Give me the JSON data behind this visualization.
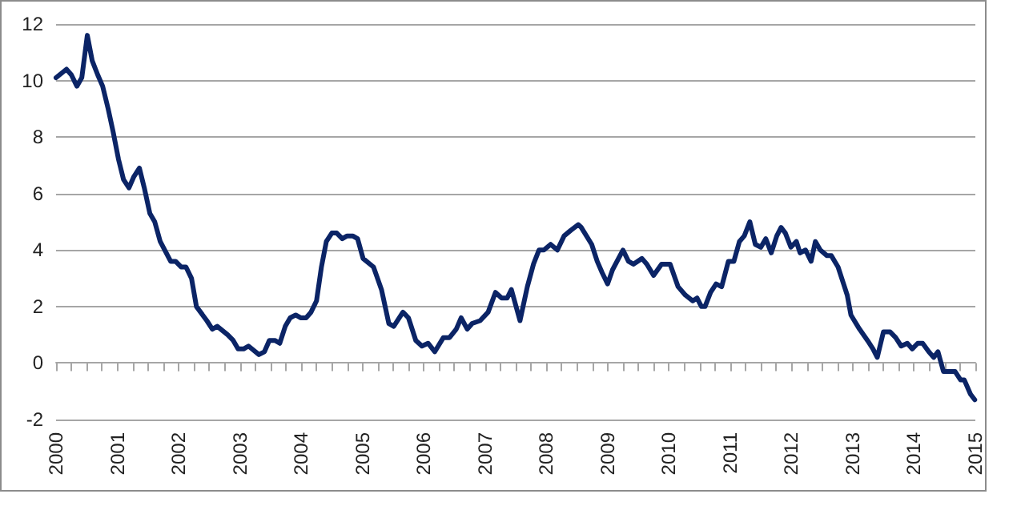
{
  "chart_data": {
    "type": "line",
    "color": "#0b2466",
    "x": [
      2000.0,
      2000.17,
      2000.25,
      2000.34,
      2000.42,
      2000.51,
      2000.59,
      2000.68,
      2000.76,
      2000.85,
      2000.93,
      2001.02,
      2001.1,
      2001.19,
      2001.27,
      2001.36,
      2001.44,
      2001.53,
      2001.61,
      2001.7,
      2001.87,
      2001.95,
      2002.04,
      2002.12,
      2002.21,
      2002.29,
      2002.46,
      2002.55,
      2002.63,
      2002.8,
      2002.89,
      2002.97,
      2003.06,
      2003.14,
      2003.31,
      2003.4,
      2003.48,
      2003.57,
      2003.65,
      2003.74,
      2003.82,
      2003.91,
      2003.99,
      2004.08,
      2004.16,
      2004.25,
      2004.33,
      2004.41,
      2004.5,
      2004.58,
      2004.67,
      2004.75,
      2004.84,
      2004.92,
      2005.01,
      2005.18,
      2005.31,
      2005.43,
      2005.51,
      2005.66,
      2005.75,
      2005.87,
      2005.97,
      2006.07,
      2006.18,
      2006.32,
      2006.42,
      2006.53,
      2006.61,
      2006.71,
      2006.79,
      2006.92,
      2007.05,
      2007.17,
      2007.27,
      2007.36,
      2007.43,
      2007.57,
      2007.69,
      2007.79,
      2007.88,
      2007.96,
      2008.07,
      2008.18,
      2008.29,
      2008.4,
      2008.52,
      2008.57,
      2008.74,
      2008.83,
      2008.91,
      2009.0,
      2009.08,
      2009.25,
      2009.34,
      2009.42,
      2009.56,
      2009.64,
      2009.75,
      2009.88,
      2010.02,
      2010.15,
      2010.27,
      2010.39,
      2010.46,
      2010.53,
      2010.59,
      2010.68,
      2010.77,
      2010.86,
      2010.97,
      2011.06,
      2011.15,
      2011.23,
      2011.32,
      2011.41,
      2011.5,
      2011.58,
      2011.67,
      2011.76,
      2011.83,
      2011.9,
      2011.99,
      2012.08,
      2012.14,
      2012.23,
      2012.32,
      2012.39,
      2012.47,
      2012.58,
      2012.65,
      2012.76,
      2012.85,
      2012.91,
      2012.97,
      2013.11,
      2013.24,
      2013.33,
      2013.4,
      2013.5,
      2013.61,
      2013.7,
      2013.79,
      2013.89,
      2013.97,
      2014.06,
      2014.14,
      2014.24,
      2014.32,
      2014.39,
      2014.48,
      2014.59,
      2014.67,
      2014.76,
      2014.82,
      2014.92,
      2014.99
    ],
    "values": [
      10.1,
      10.4,
      10.2,
      9.8,
      10.1,
      11.6,
      10.7,
      10.2,
      9.8,
      9.0,
      8.2,
      7.2,
      6.5,
      6.2,
      6.6,
      6.9,
      6.2,
      5.3,
      5.0,
      4.3,
      3.6,
      3.6,
      3.4,
      3.4,
      3.0,
      2.0,
      1.5,
      1.2,
      1.3,
      1.0,
      0.8,
      0.5,
      0.5,
      0.6,
      0.3,
      0.4,
      0.8,
      0.8,
      0.7,
      1.3,
      1.6,
      1.7,
      1.6,
      1.6,
      1.8,
      2.2,
      3.4,
      4.3,
      4.6,
      4.6,
      4.4,
      4.5,
      4.5,
      4.4,
      3.7,
      3.4,
      2.6,
      1.4,
      1.3,
      1.8,
      1.6,
      0.8,
      0.6,
      0.7,
      0.4,
      0.9,
      0.9,
      1.2,
      1.6,
      1.2,
      1.4,
      1.5,
      1.8,
      2.5,
      2.3,
      2.3,
      2.6,
      1.5,
      2.7,
      3.5,
      4.0,
      4.0,
      4.2,
      4.0,
      4.5,
      4.7,
      4.9,
      4.8,
      4.2,
      3.6,
      3.2,
      2.8,
      3.3,
      4.0,
      3.6,
      3.5,
      3.7,
      3.5,
      3.1,
      3.5,
      3.5,
      2.7,
      2.4,
      2.2,
      2.3,
      2.0,
      2.0,
      2.5,
      2.8,
      2.7,
      3.6,
      3.6,
      4.3,
      4.5,
      5.0,
      4.2,
      4.1,
      4.4,
      3.9,
      4.5,
      4.8,
      4.6,
      4.1,
      4.3,
      3.9,
      4.0,
      3.6,
      4.3,
      4.0,
      3.8,
      3.8,
      3.4,
      2.8,
      2.4,
      1.7,
      1.2,
      0.8,
      0.5,
      0.2,
      1.1,
      1.1,
      0.9,
      0.6,
      0.7,
      0.5,
      0.7,
      0.7,
      0.4,
      0.2,
      0.4,
      -0.3,
      -0.3,
      -0.3,
      -0.6,
      -0.6,
      -1.1,
      -1.3
    ],
    "xlim": [
      2000,
      2015
    ],
    "xticks": [
      2000,
      2001,
      2002,
      2003,
      2004,
      2005,
      2006,
      2007,
      2008,
      2009,
      2010,
      2011,
      2012,
      2013,
      2014,
      2015
    ],
    "ylim": [
      -2,
      12
    ],
    "yticks": [
      -2,
      0,
      2,
      4,
      6,
      8,
      10,
      12
    ],
    "grid": "y"
  }
}
